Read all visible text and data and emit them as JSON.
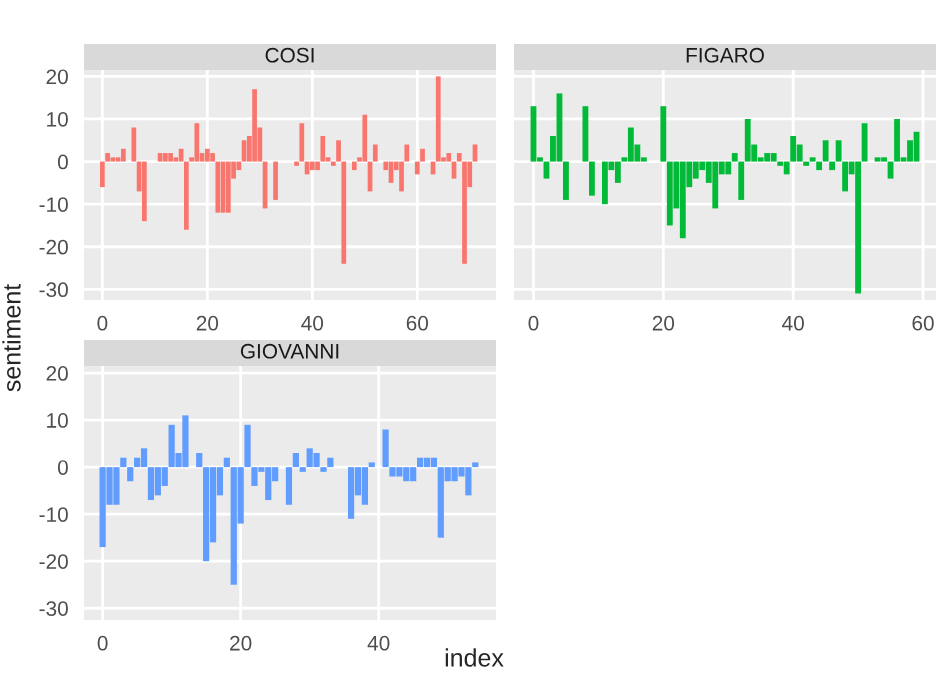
{
  "chart_data": [
    {
      "type": "bar",
      "title": "COSI",
      "ylabel": "sentiment",
      "tick_labels": true,
      "grid": true,
      "x": [
        0,
        1,
        2,
        3,
        4,
        5,
        6,
        7,
        8,
        9,
        10,
        11,
        12,
        13,
        14,
        15,
        16,
        17,
        18,
        19,
        20,
        21,
        22,
        23,
        24,
        25,
        26,
        27,
        28,
        29,
        30,
        31,
        32,
        33,
        34,
        35,
        36,
        37,
        38,
        39,
        40,
        41,
        42,
        43,
        44,
        45,
        46,
        47,
        48,
        49,
        50,
        51,
        52,
        53,
        54,
        55,
        56,
        57,
        58,
        59,
        60,
        61,
        62,
        63,
        64,
        65,
        66,
        67,
        68,
        69,
        70,
        71
      ],
      "series": [
        {
          "color": "#f8766d",
          "values": [
            -6,
            2,
            1,
            1,
            3,
            null,
            8,
            -7,
            -14,
            null,
            null,
            2,
            2,
            2,
            1,
            3,
            -16,
            1,
            9,
            2,
            3,
            2,
            -12,
            -12,
            -12,
            -4,
            -2,
            5,
            6,
            17,
            8,
            -11,
            null,
            -9,
            null,
            null,
            null,
            -1,
            9,
            -3,
            -2,
            -2,
            6,
            1,
            -1,
            5,
            -24,
            null,
            -2,
            1,
            11,
            -7,
            4,
            null,
            -2,
            -5,
            -2,
            -7,
            4,
            null,
            -3,
            3,
            null,
            -3,
            20,
            1,
            2,
            -4,
            2,
            -24,
            -6,
            4
          ]
        }
      ],
      "xlim": [
        -3.5,
        75
      ],
      "xticks": [
        0,
        20,
        40,
        60
      ],
      "ylim": [
        -32.5,
        21.5
      ],
      "yticks": [
        -30,
        -20,
        -10,
        0,
        10,
        20
      ]
    },
    {
      "type": "bar",
      "title": "FIGARO",
      "tick_labels": "x",
      "grid": true,
      "x": [
        0,
        1,
        2,
        3,
        4,
        5,
        6,
        7,
        8,
        9,
        10,
        11,
        12,
        13,
        14,
        15,
        16,
        17,
        18,
        19,
        20,
        21,
        22,
        23,
        24,
        25,
        26,
        27,
        28,
        29,
        30,
        31,
        32,
        33,
        34,
        35,
        36,
        37,
        38,
        39,
        40,
        41,
        42,
        43,
        44,
        45,
        46,
        47,
        48,
        49,
        50,
        51,
        52,
        53,
        54,
        55,
        56,
        57,
        58,
        59
      ],
      "series": [
        {
          "color": "#00ba38",
          "values": [
            13,
            1,
            -4,
            6,
            16,
            -9,
            null,
            null,
            13,
            -8,
            null,
            -10,
            -2,
            -5,
            1,
            8,
            4,
            1,
            null,
            null,
            13,
            -15,
            -11,
            -18,
            -6,
            -4,
            -2,
            -5,
            -11,
            -3,
            -3,
            2,
            -9,
            10,
            4,
            1,
            2,
            2,
            -1,
            -3,
            6,
            4,
            -1,
            1,
            -2,
            5,
            -2,
            5,
            -7,
            -3,
            -31,
            9,
            null,
            1,
            1,
            -4,
            10,
            1,
            5,
            7
          ]
        }
      ],
      "xlim": [
        -3,
        62
      ],
      "xticks": [
        0,
        20,
        40,
        60
      ],
      "ylim": [
        -32.5,
        21.5
      ],
      "yticks": [
        -30,
        -20,
        -10,
        0,
        10,
        20
      ]
    },
    {
      "type": "bar",
      "title": "GIOVANNI",
      "xlabel": "index",
      "tick_labels": true,
      "grid": true,
      "x": [
        0,
        1,
        2,
        3,
        4,
        5,
        6,
        7,
        8,
        9,
        10,
        11,
        12,
        13,
        14,
        15,
        16,
        17,
        18,
        19,
        20,
        21,
        22,
        23,
        24,
        25,
        26,
        27,
        28,
        29,
        30,
        31,
        32,
        33,
        34,
        35,
        36,
        37,
        38,
        39,
        40,
        41,
        42,
        43,
        44,
        45,
        46,
        47,
        48,
        49,
        50,
        51,
        52,
        53,
        54
      ],
      "series": [
        {
          "color": "#619cff",
          "values": [
            -17,
            -8,
            -8,
            2,
            -3,
            2,
            4,
            -7,
            -6,
            -4,
            9,
            3,
            11,
            null,
            3,
            -20,
            -16,
            -6,
            2,
            -25,
            -12,
            9,
            -4,
            -1,
            -7,
            -3,
            null,
            -8,
            3,
            -1,
            4,
            3,
            -1,
            2,
            null,
            null,
            -11,
            -6,
            -8,
            1,
            null,
            8,
            -2,
            -2,
            -3,
            -3,
            2,
            2,
            2,
            -15,
            -3,
            -3,
            -2,
            -6,
            1
          ]
        }
      ],
      "xlim": [
        -2.7,
        57
      ],
      "xticks": [
        0,
        20,
        40
      ],
      "ylim": [
        -32.5,
        21.5
      ],
      "yticks": [
        -30,
        -20,
        -10,
        0,
        10,
        20
      ]
    }
  ]
}
